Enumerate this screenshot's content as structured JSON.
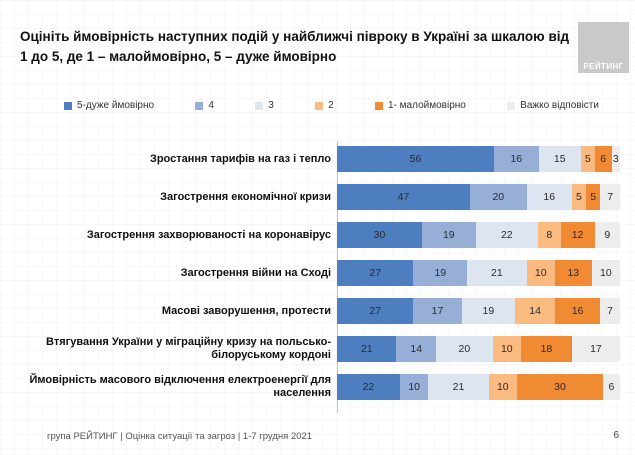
{
  "title": "Оцініть ймовірність наступних подій у найближчі півроку в Україні за шкалою від 1 до 5, де 1 – малоймовірно, 5 – дуже ймовірно",
  "logo": {
    "text": "РЕЙТИНГ"
  },
  "footer": {
    "source": "група РЕЙТИНГ |  Оцінка ситуації та загроз  | 1-7 грудня 2021",
    "page": "6"
  },
  "chart_data": {
    "type": "bar",
    "stacked": true,
    "orientation": "horizontal",
    "title": "Оцініть ймовірність наступних подій у найближчі півроку в Україні за шкалою від 1 до 5, де 1 – малоймовірно, 5 – дуже ймовірно",
    "legend_position": "top",
    "value_labels": "inside",
    "xlim": [
      0,
      100
    ],
    "categories": [
      "Зростання тарифів на газ і тепло",
      "Загострення економічної кризи",
      "Загострення захворюваності на коронавірус",
      "Загострення війни на Сході",
      "Масові заворушення, протести",
      "Втягування України у міграційну кризу на польсько-білоруському кордоні",
      "Ймовірність масового відключення електроенергії для населення"
    ],
    "series": [
      {
        "name": "5-дуже ймовірно",
        "color": "#4C7EC0",
        "values": [
          56,
          47,
          30,
          27,
          27,
          21,
          22
        ]
      },
      {
        "name": "4",
        "color": "#97AFD7",
        "values": [
          16,
          20,
          19,
          19,
          17,
          14,
          10
        ]
      },
      {
        "name": "3",
        "color": "#DDE5F1",
        "values": [
          15,
          16,
          22,
          21,
          19,
          20,
          21
        ]
      },
      {
        "name": "2",
        "color": "#FABA80",
        "values": [
          5,
          5,
          8,
          10,
          14,
          10,
          10
        ]
      },
      {
        "name": "1- малоймовірно",
        "color": "#F18B33",
        "values": [
          6,
          5,
          12,
          13,
          16,
          18,
          30
        ]
      },
      {
        "name": "Важко відповісти",
        "color": "#EDEDED",
        "values": [
          3,
          7,
          9,
          10,
          7,
          17,
          6
        ]
      }
    ]
  }
}
